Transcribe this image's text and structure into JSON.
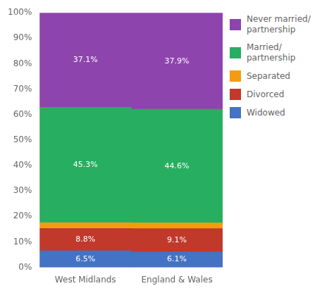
{
  "chart_data": {
    "type": "bar",
    "stacked": true,
    "categories": [
      "West Midlands",
      "England & Wales"
    ],
    "series": [
      {
        "name": "Widowed",
        "color": "#4472C4",
        "values": [
          6.5,
          6.1
        ],
        "value_labels": [
          "6.5%",
          "6.1%"
        ]
      },
      {
        "name": "Divorced",
        "color": "#C0392B",
        "values": [
          8.8,
          9.1
        ],
        "value_labels": [
          "8.8%",
          "9.1%"
        ]
      },
      {
        "name": "Separated",
        "color": "#F39C12",
        "values": [
          2.3,
          2.3
        ]
      },
      {
        "name": "Married/\npartnership",
        "color": "#27AE60",
        "values": [
          45.3,
          44.6
        ],
        "value_labels": [
          "45.3%",
          "44.6%"
        ]
      },
      {
        "name": "Never married/\npartnership",
        "color": "#8E44AD",
        "values": [
          37.1,
          37.9
        ],
        "value_labels": [
          "37.1%",
          "37.9%"
        ]
      }
    ],
    "ylim": [
      0,
      100
    ],
    "yticks": [
      {
        "value": 0,
        "label": "0%"
      },
      {
        "value": 10,
        "label": "10%"
      },
      {
        "value": 20,
        "label": "20%"
      },
      {
        "value": 30,
        "label": "30%"
      },
      {
        "value": 40,
        "label": "40%"
      },
      {
        "value": 50,
        "label": "50%"
      },
      {
        "value": 60,
        "label": "60%"
      },
      {
        "value": 70,
        "label": "70%"
      },
      {
        "value": 80,
        "label": "80%"
      },
      {
        "value": 90,
        "label": "90%"
      },
      {
        "value": 100,
        "label": "100%"
      }
    ],
    "grid": false,
    "legend": "right",
    "data_labels": true
  }
}
